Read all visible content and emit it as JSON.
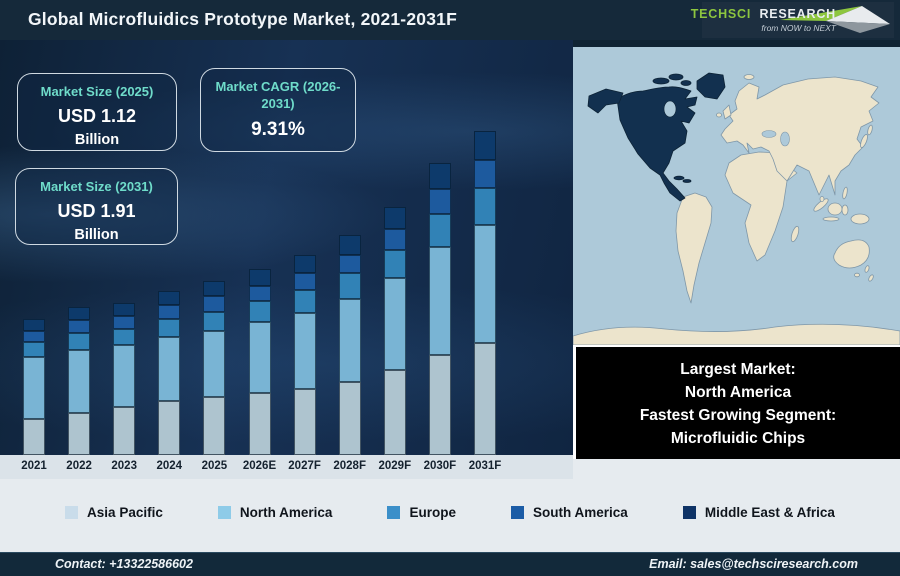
{
  "header": {
    "title": "Global Microfluidics Prototype Market, 2021-2031F",
    "logo": {
      "brand_primary": "TechSci",
      "brand_secondary": "Research",
      "tagline": "from NOW to NEXT",
      "brand_green": "#8dc63f"
    }
  },
  "info_cards": [
    {
      "label": "Market Size (2025)",
      "value": "USD 1.12",
      "unit": "Billion"
    },
    {
      "label": "Market CAGR (2026-2031)",
      "value": "9.31%",
      "unit": ""
    },
    {
      "label": "Market Size (2031)",
      "value": "USD 1.91",
      "unit": "Billion"
    }
  ],
  "chart_data": {
    "type": "bar",
    "stacked": true,
    "title": "Global Microfluidics Prototype Market, 2021-2031F",
    "xlabel": "",
    "ylabel": "",
    "axis_values_shown": false,
    "legend_position": "bottom",
    "categories": [
      "2021",
      "2022",
      "2023",
      "2024",
      "2025",
      "2026E",
      "2027F",
      "2028F",
      "2029F",
      "2030F",
      "2031F"
    ],
    "series": [
      {
        "name": "Asia Pacific",
        "color": "#aec4cf",
        "legend_color": "#c9dcea",
        "values": [
          36,
          42,
          48,
          54,
          58,
          62,
          66,
          73,
          85,
          100,
          112
        ]
      },
      {
        "name": "North America",
        "color": "#79b4d4",
        "legend_color": "#8ecbe8",
        "values": [
          62,
          63,
          62,
          64,
          66,
          71,
          76,
          83,
          92,
          108,
          118
        ]
      },
      {
        "name": "Europe",
        "color": "#3182b6",
        "legend_color": "#3b8fc9",
        "values": [
          15,
          17,
          16,
          18,
          19,
          21,
          23,
          26,
          28,
          33,
          37
        ]
      },
      {
        "name": "South America",
        "color": "#1d5a9e",
        "legend_color": "#1b5ca6",
        "values": [
          11,
          13,
          13,
          14,
          16,
          15,
          17,
          18,
          21,
          25,
          28
        ]
      },
      {
        "name": "Middle East & Africa",
        "color": "#0d3a6b",
        "legend_color": "#0e3366",
        "values": [
          12,
          13,
          13,
          14,
          15,
          17,
          18,
          20,
          22,
          26,
          29
        ]
      }
    ],
    "value_unit": "relative bar-segment height (px), axis unlabeled in source",
    "stated_values": {
      "market_size_2025_usd_billion": 1.12,
      "market_size_2031_usd_billion": 1.91,
      "cagr_2026_2031_percent": 9.31
    }
  },
  "map_panel": {
    "highlight_region": "North America",
    "highlight_color": "#12304f",
    "land_color": "#ece4cc",
    "ocean_color": "#adc9d9"
  },
  "callout": {
    "lines": [
      "Largest Market:",
      "North America",
      "Fastest Growing Segment:",
      "Microfluidic Chips"
    ]
  },
  "footer": {
    "contact": "Contact: +13322586602",
    "email": "Email: sales@techsciresearch.com"
  }
}
